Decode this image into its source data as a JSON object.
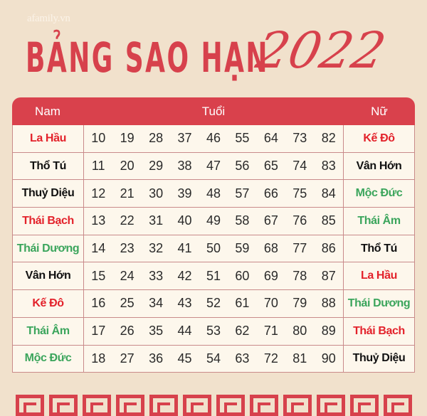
{
  "brand": "afamily.vn",
  "title": "BẢNG SAO HẠN",
  "year": "2022",
  "header": {
    "male": "Nam",
    "age": "Tuổi",
    "female": "Nữ"
  },
  "colors": {
    "red": "#e3222b",
    "green": "#3ba55c",
    "black": "#111111",
    "header": "#d9414c"
  },
  "rows": [
    {
      "male": "La Hầu",
      "male_color": "red",
      "ages": [
        "10",
        "19",
        "28",
        "37",
        "46",
        "55",
        "64",
        "73",
        "82"
      ],
      "female": "Kế Đô",
      "female_color": "red"
    },
    {
      "male": "Thổ Tú",
      "male_color": "black",
      "ages": [
        "11",
        "20",
        "29",
        "38",
        "47",
        "56",
        "65",
        "74",
        "83"
      ],
      "female": "Vân Hớn",
      "female_color": "black"
    },
    {
      "male": "Thuỷ Diệu",
      "male_color": "black",
      "ages": [
        "12",
        "21",
        "30",
        "39",
        "48",
        "57",
        "66",
        "75",
        "84"
      ],
      "female": "Mộc Đức",
      "female_color": "green"
    },
    {
      "male": "Thái Bạch",
      "male_color": "red",
      "ages": [
        "13",
        "22",
        "31",
        "40",
        "49",
        "58",
        "67",
        "76",
        "85"
      ],
      "female": "Thái Âm",
      "female_color": "green"
    },
    {
      "male": "Thái Dương",
      "male_color": "green",
      "ages": [
        "14",
        "23",
        "32",
        "41",
        "50",
        "59",
        "68",
        "77",
        "86"
      ],
      "female": "Thổ Tú",
      "female_color": "black"
    },
    {
      "male": "Vân Hớn",
      "male_color": "black",
      "ages": [
        "15",
        "24",
        "33",
        "42",
        "51",
        "60",
        "69",
        "78",
        "87"
      ],
      "female": "La Hầu",
      "female_color": "red"
    },
    {
      "male": "Kế Đô",
      "male_color": "red",
      "ages": [
        "16",
        "25",
        "34",
        "43",
        "52",
        "61",
        "70",
        "79",
        "88"
      ],
      "female": "Thái Dương",
      "female_color": "green"
    },
    {
      "male": "Thái Âm",
      "male_color": "green",
      "ages": [
        "17",
        "26",
        "35",
        "44",
        "53",
        "62",
        "71",
        "80",
        "89"
      ],
      "female": "Thái Bạch",
      "female_color": "red"
    },
    {
      "male": "Mộc Đức",
      "male_color": "green",
      "ages": [
        "18",
        "27",
        "36",
        "45",
        "54",
        "63",
        "72",
        "81",
        "90"
      ],
      "female": "Thuỷ Diệu",
      "female_color": "black"
    }
  ]
}
